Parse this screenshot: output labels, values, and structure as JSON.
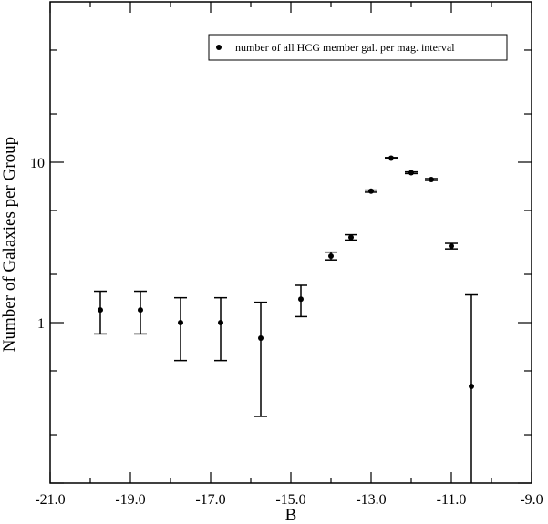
{
  "chart_data": {
    "type": "scatter",
    "title": "",
    "xlabel": "B",
    "ylabel": "Number of Galaxies per Group",
    "xlim": [
      -21.0,
      -9.0
    ],
    "ylim": [
      0.1,
      100
    ],
    "yscale": "log",
    "grid": false,
    "legend_position": "top-right",
    "x_ticks": [
      -21.0,
      -19.0,
      -17.0,
      -15.0,
      -13.0,
      -11.0,
      -9.0
    ],
    "x_tick_labels": [
      "-21.0",
      "-19.0",
      "-17.0",
      "-15.0",
      "-13.0",
      "-11.0",
      "-9.0"
    ],
    "y_ticks": [
      1,
      10
    ],
    "y_tick_labels": [
      "1",
      "10"
    ],
    "series": [
      {
        "name": "number of all HCG member gal. per mag. interval",
        "color": "#000000",
        "points": [
          {
            "x": -19.75,
            "y": 1.2,
            "yerr_low": 0.85,
            "yerr_high": 1.57
          },
          {
            "x": -18.75,
            "y": 1.2,
            "yerr_low": 0.85,
            "yerr_high": 1.57
          },
          {
            "x": -17.75,
            "y": 1.0,
            "yerr_low": 0.58,
            "yerr_high": 1.43
          },
          {
            "x": -16.75,
            "y": 1.0,
            "yerr_low": 0.58,
            "yerr_high": 1.43
          },
          {
            "x": -15.75,
            "y": 0.8,
            "yerr_low": 0.26,
            "yerr_high": 1.34
          },
          {
            "x": -14.75,
            "y": 1.4,
            "yerr_low": 1.09,
            "yerr_high": 1.71
          },
          {
            "x": -14.0,
            "y": 2.6,
            "yerr_low": 2.46,
            "yerr_high": 2.75
          },
          {
            "x": -13.5,
            "y": 3.4,
            "yerr_low": 3.27,
            "yerr_high": 3.53
          },
          {
            "x": -13.0,
            "y": 6.6,
            "yerr_low": 6.5,
            "yerr_high": 6.7
          },
          {
            "x": -12.5,
            "y": 10.6,
            "yerr_low": 10.5,
            "yerr_high": 10.7
          },
          {
            "x": -12.0,
            "y": 8.6,
            "yerr_low": 8.5,
            "yerr_high": 8.7
          },
          {
            "x": -11.5,
            "y": 7.8,
            "yerr_low": 7.7,
            "yerr_high": 7.9
          },
          {
            "x": -11.0,
            "y": 3.0,
            "yerr_low": 2.88,
            "yerr_high": 3.12
          },
          {
            "x": -10.5,
            "y": 0.4,
            "yerr_low": 0.1,
            "yerr_high": 1.49
          }
        ]
      }
    ]
  }
}
